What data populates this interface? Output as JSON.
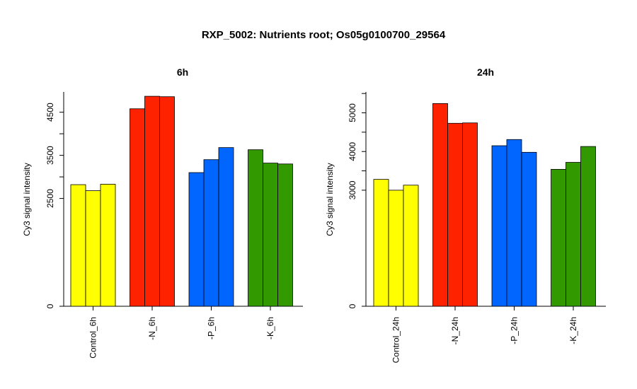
{
  "title": "RXP_5002: Nutrients root; Os05g0100700_29564",
  "colors": {
    "control": "#ffff00",
    "n": "#ff2200",
    "p": "#0066ff",
    "k": "#339900"
  },
  "chart_data": [
    {
      "type": "bar",
      "title": "6h",
      "ylabel": "Cy3 signal intensity",
      "y_ticks": [
        0,
        2500,
        3500,
        4500
      ],
      "groups": [
        {
          "label": "Control_6h",
          "color_key": "control",
          "values": [
            2820,
            2680,
            2830
          ]
        },
        {
          "label": "-N_6h",
          "color_key": "n",
          "values": [
            4580,
            4870,
            4860
          ]
        },
        {
          "label": "-P_6h",
          "color_key": "p",
          "values": [
            3100,
            3400,
            3680
          ]
        },
        {
          "label": "-K_6h",
          "color_key": "k",
          "values": [
            3630,
            3320,
            3300
          ]
        }
      ]
    },
    {
      "type": "bar",
      "title": "24h",
      "ylabel": "Cy3 signal intensity",
      "y_ticks": [
        0,
        3000,
        4000,
        5000
      ],
      "groups": [
        {
          "label": "Control_24h",
          "color_key": "control",
          "values": [
            3280,
            3000,
            3130
          ]
        },
        {
          "label": "-N_24h",
          "color_key": "n",
          "values": [
            5240,
            4730,
            4740
          ]
        },
        {
          "label": "-P_24h",
          "color_key": "p",
          "values": [
            4150,
            4310,
            3980
          ]
        },
        {
          "label": "-K_24h",
          "color_key": "k",
          "values": [
            3540,
            3720,
            4130
          ]
        }
      ]
    }
  ]
}
